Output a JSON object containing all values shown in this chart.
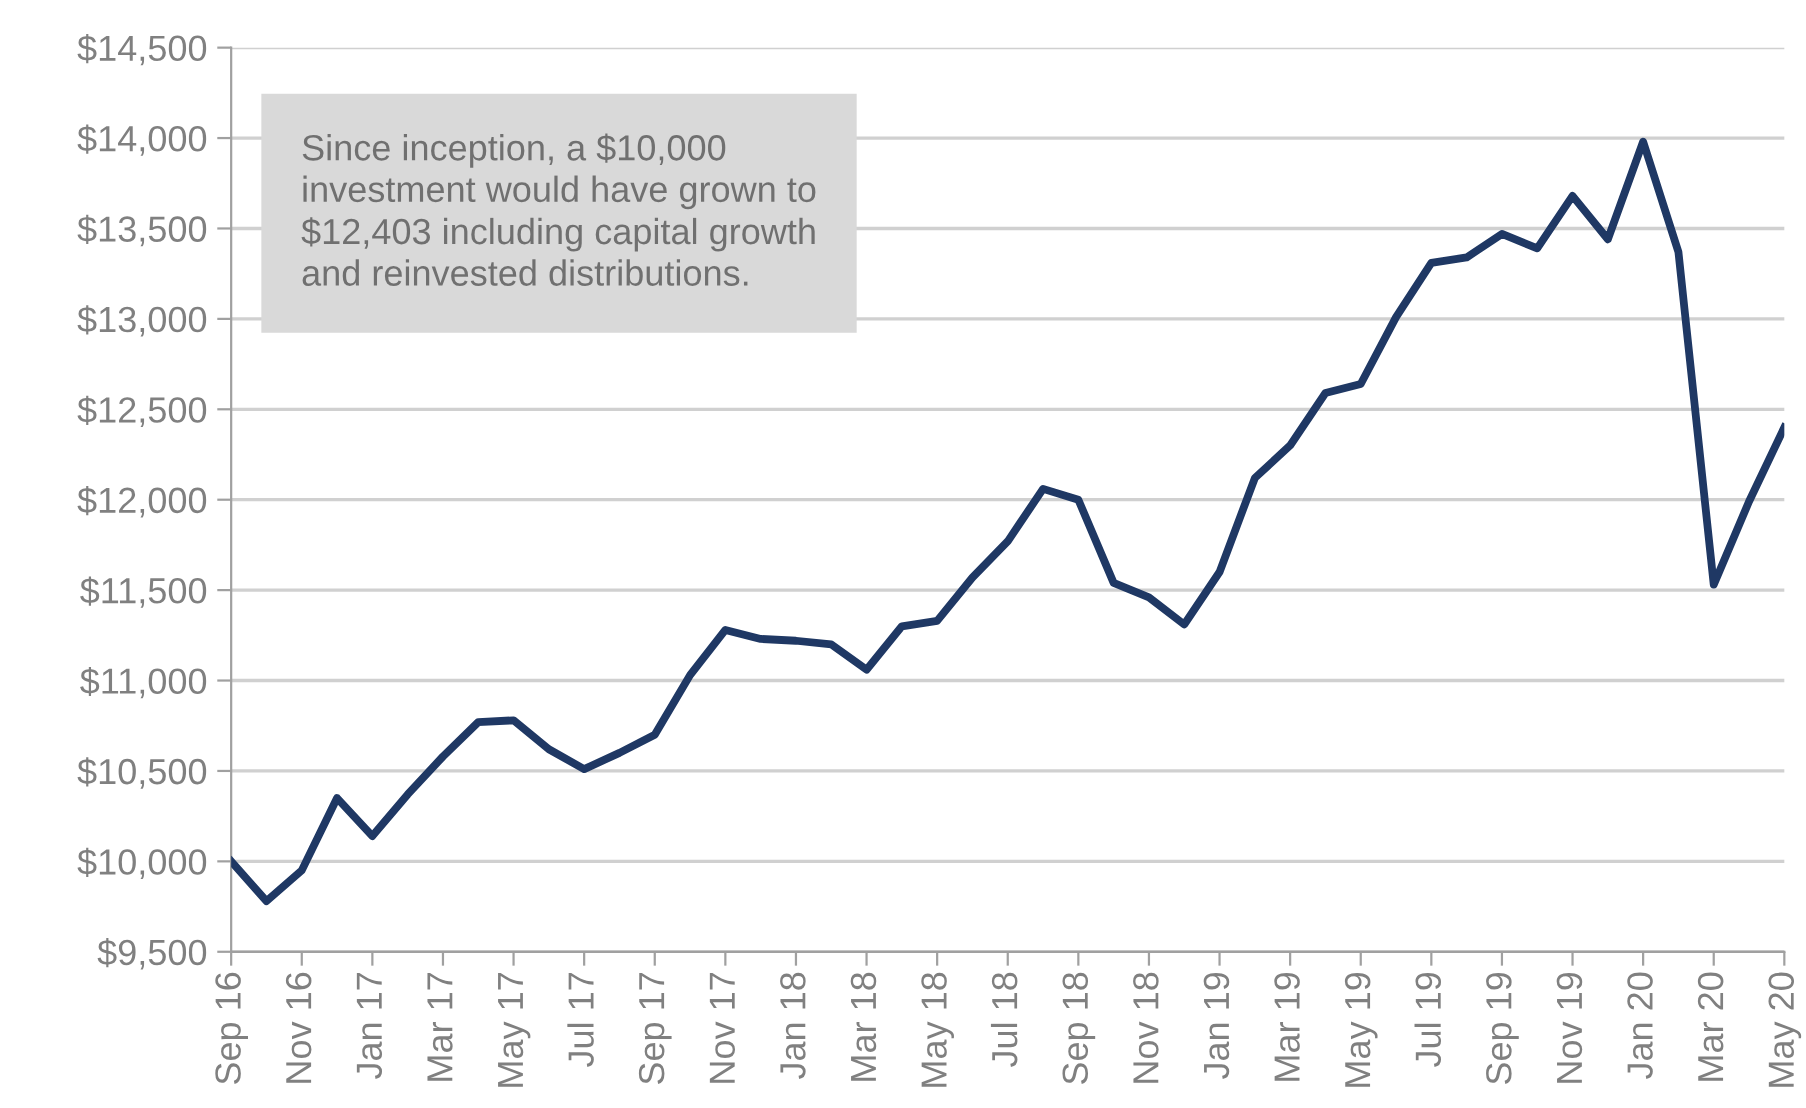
{
  "chart_data": {
    "type": "line",
    "categories": [
      "Sep 16",
      null,
      "Nov 16",
      null,
      "Jan 17",
      null,
      "Mar 17",
      null,
      "May 17",
      null,
      "Jul 17",
      null,
      "Sep 17",
      null,
      "Nov 17",
      null,
      "Jan 18",
      null,
      "Mar 18",
      null,
      "May 18",
      null,
      "Jul 18",
      null,
      "Sep 18",
      null,
      "Nov 18",
      null,
      "Jan 19",
      null,
      "Mar 19",
      null,
      "May 19",
      null,
      "Jul 19",
      null,
      "Sep 19",
      null,
      "Nov 19",
      null,
      "Jan 20",
      null,
      "Mar 20",
      null,
      "May 20"
    ],
    "series": [
      {
        "color": "#1f3864",
        "values": [
          10000,
          9780,
          9950,
          10350,
          10140,
          10370,
          10580,
          10770,
          10780,
          10620,
          10510,
          10600,
          10700,
          11030,
          11280,
          11230,
          11220,
          11200,
          11060,
          11300,
          11330,
          11570,
          11770,
          12060,
          12000,
          11540,
          11460,
          11310,
          11600,
          12120,
          12300,
          12590,
          12640,
          13010,
          13310,
          13340,
          13470,
          13390,
          13680,
          13440,
          13980,
          13370,
          11530,
          11990,
          12400
        ]
      }
    ],
    "ylim": [
      9500,
      14500
    ],
    "yticks": [
      {
        "value": 9500,
        "label": "$9,500"
      },
      {
        "value": 10000,
        "label": "$10,000"
      },
      {
        "value": 10500,
        "label": "$10,500"
      },
      {
        "value": 11000,
        "label": "$11,000"
      },
      {
        "value": 11500,
        "label": "$11,500"
      },
      {
        "value": 12000,
        "label": "$12,000"
      },
      {
        "value": 12500,
        "label": "$12,500"
      },
      {
        "value": 13000,
        "label": "$13,000"
      },
      {
        "value": 13500,
        "label": "$13,500"
      },
      {
        "value": 14000,
        "label": "$14,000"
      },
      {
        "value": 14500,
        "label": "$14,500"
      }
    ],
    "grid": "y",
    "marker": "none",
    "line_style": "solid",
    "legend": false,
    "annotations": [
      "Since inception, a $10,000\ninvestment would have grown to\n$12,403 including capital growth\nand reinvested distributions."
    ]
  }
}
